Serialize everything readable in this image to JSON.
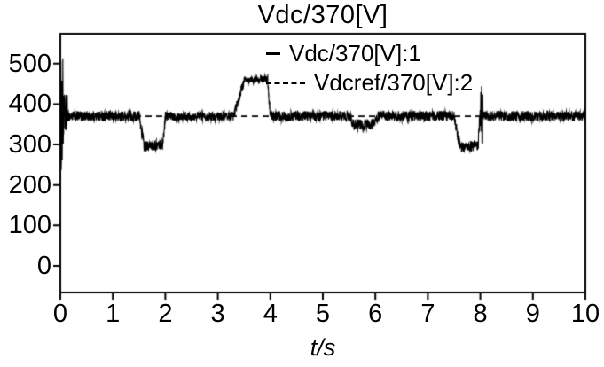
{
  "chart_data": {
    "type": "line",
    "title": "Vdc/370[V]",
    "xlabel": "t/s",
    "ylabel": "",
    "xlim": [
      0,
      10
    ],
    "ylim": [
      -66,
      574
    ],
    "x_ticks": [
      0,
      1,
      2,
      3,
      4,
      5,
      6,
      7,
      8,
      9,
      10
    ],
    "y_ticks": [
      0,
      100,
      200,
      300,
      400,
      500
    ],
    "grid": false,
    "legend_position": "top-center-inside",
    "line_color": "#000000",
    "background": "#ffffff",
    "series": [
      {
        "name": "Vdc/370[V]:1",
        "style": "solid",
        "color": "#000000",
        "description": "noisy measured DC voltage, baseline 370 V with startup transient, dip to ~300 V (1.5-2 s), rise to ~460 V (3.5-4 s), dip to ~350 V (5.5-6 s), dip to ~300 V (7.5-8 s)",
        "segments": [
          {
            "t0": 0.0,
            "t1": 0.06,
            "v0": 370,
            "v1": 370,
            "noise": 145
          },
          {
            "t0": 0.06,
            "t1": 0.14,
            "v0": 370,
            "v1": 370,
            "noise": 55
          },
          {
            "t0": 0.14,
            "t1": 1.5,
            "v0": 370,
            "v1": 370,
            "noise": 13
          },
          {
            "t0": 1.5,
            "t1": 1.6,
            "v0": 370,
            "v1": 295,
            "noise": 16
          },
          {
            "t0": 1.6,
            "t1": 1.95,
            "v0": 295,
            "v1": 300,
            "noise": 13
          },
          {
            "t0": 1.95,
            "t1": 2.0,
            "v0": 300,
            "v1": 370,
            "noise": 16
          },
          {
            "t0": 2.0,
            "t1": 3.3,
            "v0": 370,
            "v1": 370,
            "noise": 11
          },
          {
            "t0": 3.3,
            "t1": 3.5,
            "v0": 370,
            "v1": 458,
            "noise": 12
          },
          {
            "t0": 3.5,
            "t1": 3.95,
            "v0": 458,
            "v1": 462,
            "noise": 8
          },
          {
            "t0": 3.95,
            "t1": 4.0,
            "v0": 462,
            "v1": 370,
            "noise": 14
          },
          {
            "t0": 4.0,
            "t1": 5.5,
            "v0": 370,
            "v1": 370,
            "noise": 13
          },
          {
            "t0": 5.5,
            "t1": 5.6,
            "v0": 370,
            "v1": 348,
            "noise": 14
          },
          {
            "t0": 5.6,
            "t1": 5.95,
            "v0": 348,
            "v1": 350,
            "noise": 14
          },
          {
            "t0": 5.95,
            "t1": 6.05,
            "v0": 350,
            "v1": 370,
            "noise": 14
          },
          {
            "t0": 6.05,
            "t1": 7.5,
            "v0": 370,
            "v1": 370,
            "noise": 13
          },
          {
            "t0": 7.5,
            "t1": 7.62,
            "v0": 370,
            "v1": 293,
            "noise": 15
          },
          {
            "t0": 7.62,
            "t1": 7.95,
            "v0": 293,
            "v1": 297,
            "noise": 13
          },
          {
            "t0": 7.95,
            "t1": 8.0,
            "v0": 297,
            "v1": 370,
            "noise": 30
          },
          {
            "t0": 8.0,
            "t1": 8.05,
            "v0": 370,
            "v1": 370,
            "noise": 75
          },
          {
            "t0": 8.05,
            "t1": 10.0,
            "v0": 370,
            "v1": 370,
            "noise": 13
          }
        ]
      },
      {
        "name": "Vdcref/370[V]:2",
        "style": "dashed",
        "color": "#000000",
        "value": 370,
        "description": "constant reference at 370 V, dashed line across full time span"
      }
    ]
  }
}
